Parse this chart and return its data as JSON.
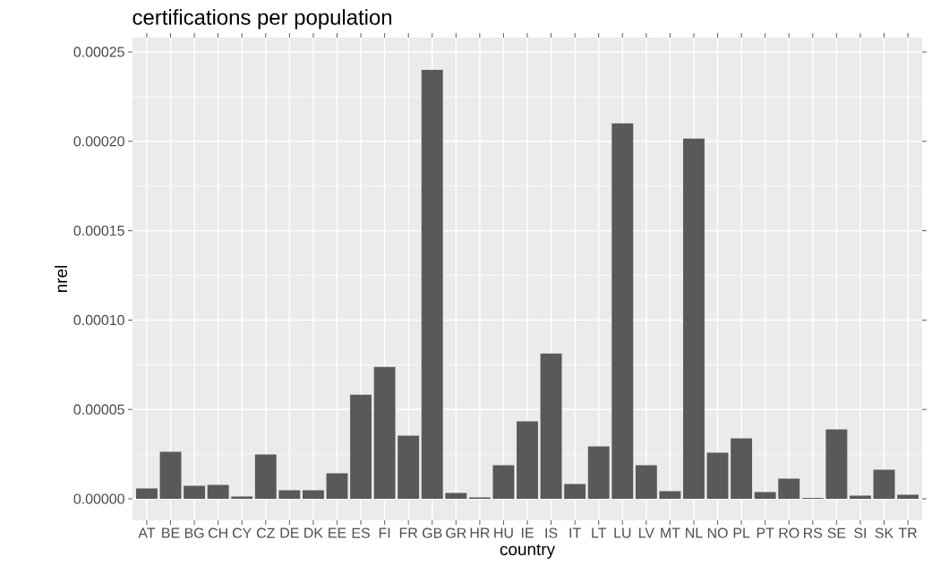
{
  "chart_data": {
    "type": "bar",
    "title": "certifications per population",
    "xlabel": "country",
    "ylabel": "nrel",
    "categories": [
      "AT",
      "BE",
      "BG",
      "CH",
      "CY",
      "CZ",
      "DE",
      "DK",
      "EE",
      "ES",
      "FI",
      "FR",
      "GB",
      "GR",
      "HR",
      "HU",
      "IE",
      "IS",
      "IT",
      "LT",
      "LU",
      "LV",
      "MT",
      "NL",
      "NO",
      "PL",
      "PT",
      "RO",
      "RS",
      "SE",
      "SI",
      "SK",
      "TR"
    ],
    "values": [
      5.8e-06,
      2.63e-05,
      7.3e-06,
      7.8e-06,
      1.3e-06,
      2.48e-05,
      4.8e-06,
      4.8e-06,
      1.43e-05,
      5.83e-05,
      7.38e-05,
      3.53e-05,
      0.00024,
      3.3e-06,
      8e-07,
      1.88e-05,
      4.33e-05,
      8.13e-05,
      8.3e-06,
      2.93e-05,
      0.00021,
      1.88e-05,
      4.3e-06,
      0.0002015,
      2.58e-05,
      3.38e-05,
      3.8e-06,
      1.13e-05,
      5e-07,
      3.88e-05,
      1.8e-06,
      1.63e-05,
      2.3e-06
    ],
    "color": "#595959",
    "ylim": [
      -1.2e-05,
      0.000258
    ],
    "yticks": [
      {
        "value": 0,
        "label": "0.00000"
      },
      {
        "value": 5e-05,
        "label": "0.00005"
      },
      {
        "value": 0.0001,
        "label": "0.00010"
      },
      {
        "value": 0.00015,
        "label": "0.00015"
      },
      {
        "value": 0.0002,
        "label": "0.00020"
      },
      {
        "value": 0.00025,
        "label": "0.00025"
      }
    ],
    "grid": true
  }
}
